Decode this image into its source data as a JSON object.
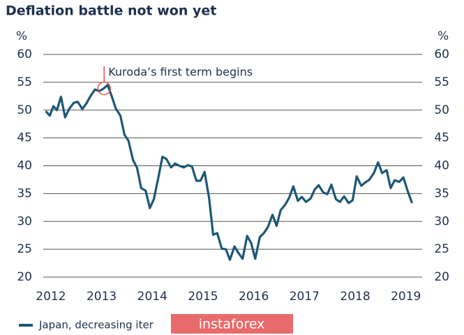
{
  "chart_data": {
    "type": "line",
    "title": "Deflation battle not won yet",
    "unit": "%",
    "annotation": {
      "text": "Kuroda’s first term begins",
      "x": 2013.05,
      "y": 53.9
    },
    "watermark": "instaforex",
    "xlim": [
      2011.85,
      2019.32
    ],
    "xticks": [
      2012,
      2013,
      2014,
      2015,
      2016,
      2017,
      2018,
      2019
    ],
    "ylim": [
      20,
      60
    ],
    "yticks": [
      20,
      25,
      30,
      35,
      40,
      45,
      50,
      55,
      60
    ],
    "grid": true,
    "x": [
      2011.9,
      2011.98,
      2012.05,
      2012.12,
      2012.2,
      2012.28,
      2012.36,
      2012.45,
      2012.53,
      2012.62,
      2012.7,
      2012.78,
      2012.87,
      2012.95,
      2013.03,
      2013.12,
      2013.2,
      2013.28,
      2013.37,
      2013.45,
      2013.53,
      2013.62,
      2013.7,
      2013.78,
      2013.87,
      2013.95,
      2014.03,
      2014.12,
      2014.2,
      2014.28,
      2014.37,
      2014.45,
      2014.53,
      2014.62,
      2014.7,
      2014.78,
      2014.87,
      2014.95,
      2015.03,
      2015.12,
      2015.2,
      2015.28,
      2015.37,
      2015.45,
      2015.53,
      2015.62,
      2015.7,
      2015.78,
      2015.87,
      2015.95,
      2016.03,
      2016.12,
      2016.2,
      2016.28,
      2016.37,
      2016.45,
      2016.53,
      2016.62,
      2016.7,
      2016.78,
      2016.87,
      2016.95,
      2017.03,
      2017.12,
      2017.2,
      2017.28,
      2017.37,
      2017.45,
      2017.53,
      2017.62,
      2017.7,
      2017.78,
      2017.87,
      2017.95,
      2018.03,
      2018.12,
      2018.2,
      2018.28,
      2018.37,
      2018.45,
      2018.53,
      2018.62,
      2018.7,
      2018.78,
      2018.87,
      2018.95,
      2019.03,
      2019.12
    ],
    "series": [
      {
        "name": "Japan, decreasing iter",
        "color": "#1c5776",
        "values": [
          49.8,
          49.0,
          50.7,
          50.0,
          52.4,
          48.7,
          50.2,
          51.3,
          51.5,
          50.2,
          51.2,
          52.5,
          53.7,
          53.4,
          53.8,
          54.5,
          52.5,
          50.3,
          49.0,
          45.6,
          44.5,
          41.0,
          39.6,
          36.0,
          35.5,
          32.4,
          34.0,
          37.9,
          41.6,
          41.2,
          39.7,
          40.4,
          40.0,
          39.7,
          40.1,
          39.9,
          37.3,
          37.3,
          38.9,
          34.2,
          27.6,
          27.9,
          25.1,
          25.0,
          23.1,
          25.5,
          24.3,
          23.3,
          27.4,
          26.1,
          23.3,
          27.2,
          27.9,
          29.0,
          31.2,
          29.2,
          32.0,
          33.0,
          34.3,
          36.3,
          33.7,
          34.4,
          33.5,
          34.1,
          35.7,
          36.5,
          35.2,
          34.9,
          36.6,
          34.0,
          33.5,
          34.5,
          33.3,
          33.8,
          38.1,
          36.4,
          37.0,
          37.5,
          38.7,
          40.6,
          38.7,
          39.2,
          36.0,
          37.4,
          37.1,
          37.9,
          35.6,
          33.3
        ]
      }
    ]
  }
}
